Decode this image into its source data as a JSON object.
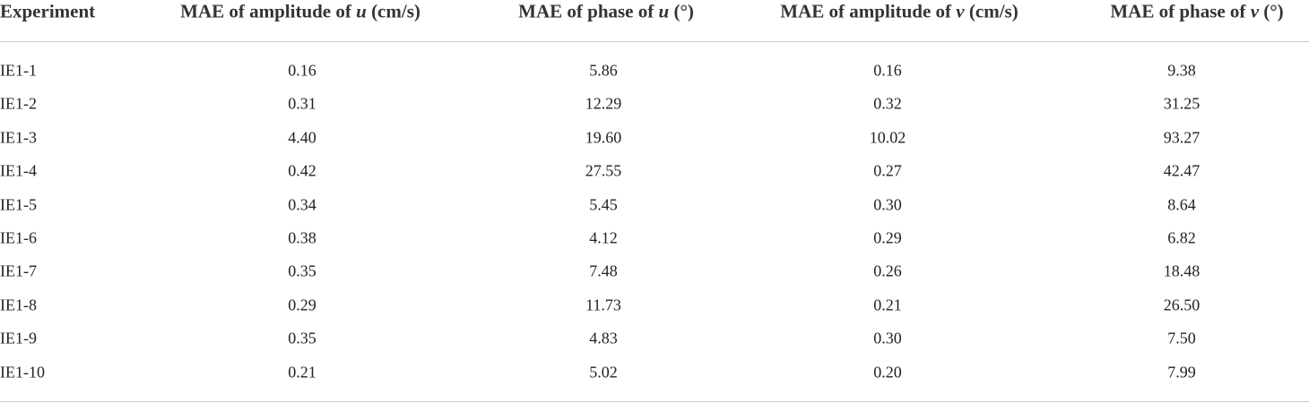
{
  "table": {
    "header": [
      [
        "Experiment"
      ],
      [
        "MAE of amplitude of",
        "u",
        "(cm/s)"
      ],
      [
        "MAE of phase of",
        "u",
        "(°)"
      ],
      [
        "MAE of amplitude of",
        "v",
        "(cm/s)"
      ],
      [
        "MAE of phase of",
        "v",
        "(°)"
      ]
    ],
    "rows": [
      [
        "IE1-1",
        "0.16",
        "5.86",
        "0.16",
        "9.38"
      ],
      [
        "IE1-2",
        "0.31",
        "12.29",
        "0.32",
        "31.25"
      ],
      [
        "IE1-3",
        "4.40",
        "19.60",
        "10.02",
        "93.27"
      ],
      [
        "IE1-4",
        "0.42",
        "27.55",
        "0.27",
        "42.47"
      ],
      [
        "IE1-5",
        "0.34",
        "5.45",
        "0.30",
        "8.64"
      ],
      [
        "IE1-6",
        "0.38",
        "4.12",
        "0.29",
        "6.82"
      ],
      [
        "IE1-7",
        "0.35",
        "7.48",
        "0.26",
        "18.48"
      ],
      [
        "IE1-8",
        "0.29",
        "11.73",
        "0.21",
        "26.50"
      ],
      [
        "IE1-9",
        "0.35",
        "4.83",
        "0.30",
        "7.50"
      ],
      [
        "IE1-10",
        "0.21",
        "5.02",
        "0.20",
        "7.99"
      ]
    ]
  }
}
